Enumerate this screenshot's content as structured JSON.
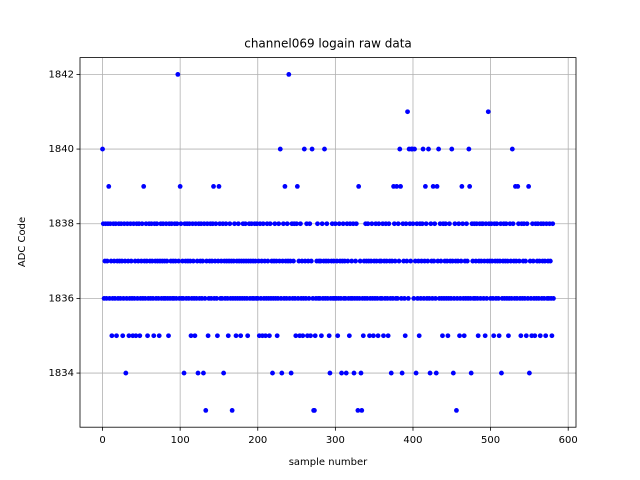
{
  "chart_data": {
    "type": "scatter",
    "title": "channel069 logain raw data",
    "xlabel": "sample number",
    "ylabel": "ADC Code",
    "color": "#0000ff",
    "grid": true,
    "xlim": [
      -29.05,
      610.05
    ],
    "ylim": [
      1832.55,
      1842.45
    ],
    "xticks": [
      0,
      100,
      200,
      300,
      400,
      500,
      600
    ],
    "yticks": [
      1834,
      1836,
      1838,
      1840,
      1842
    ],
    "x": [
      0,
      1,
      2,
      3,
      4,
      5,
      6,
      7,
      8,
      9,
      10,
      11,
      12,
      13,
      14,
      15,
      16,
      17,
      18,
      19,
      20,
      21,
      22,
      23,
      24,
      25,
      26,
      27,
      28,
      29,
      30,
      31,
      32,
      33,
      34,
      35,
      36,
      37,
      38,
      39,
      40,
      41,
      42,
      43,
      44,
      45,
      46,
      47,
      48,
      49,
      50,
      51,
      52,
      53,
      54,
      55,
      56,
      57,
      58,
      59,
      60,
      61,
      62,
      63,
      64,
      65,
      66,
      67,
      68,
      69,
      70,
      71,
      72,
      73,
      74,
      75,
      76,
      77,
      78,
      79,
      80,
      81,
      82,
      83,
      84,
      85,
      86,
      87,
      88,
      89,
      90,
      91,
      92,
      93,
      94,
      95,
      96,
      97,
      98,
      99,
      100,
      101,
      102,
      103,
      104,
      105,
      106,
      107,
      108,
      109,
      110,
      111,
      112,
      113,
      114,
      115,
      116,
      117,
      118,
      119,
      120,
      121,
      122,
      123,
      124,
      125,
      126,
      127,
      128,
      129,
      130,
      131,
      132,
      133,
      134,
      135,
      136,
      137,
      138,
      139,
      140,
      141,
      142,
      143,
      144,
      145,
      146,
      147,
      148,
      149,
      150,
      151,
      152,
      153,
      154,
      155,
      156,
      157,
      158,
      159,
      160,
      161,
      162,
      163,
      164,
      165,
      166,
      167,
      168,
      169,
      170,
      171,
      172,
      173,
      174,
      175,
      176,
      177,
      178,
      179,
      180,
      181,
      182,
      183,
      184,
      185,
      186,
      187,
      188,
      189,
      190,
      191,
      192,
      193,
      194,
      195,
      196,
      197,
      198,
      199,
      200,
      201,
      202,
      203,
      204,
      205,
      206,
      207,
      208,
      209,
      210,
      211,
      212,
      213,
      214,
      215,
      216,
      217,
      218,
      219,
      220,
      221,
      222,
      223,
      224,
      225,
      226,
      227,
      228,
      229,
      230,
      231,
      232,
      233,
      234,
      235,
      236,
      237,
      238,
      239,
      240,
      241,
      242,
      243,
      244,
      245,
      246,
      247,
      248,
      249,
      250,
      251,
      252,
      253,
      254,
      255,
      256,
      257,
      258,
      259,
      260,
      261,
      262,
      263,
      264,
      265,
      266,
      267,
      268,
      269,
      270,
      271,
      272,
      273,
      274,
      275,
      276,
      277,
      278,
      279,
      280,
      281,
      282,
      283,
      284,
      285,
      286,
      287,
      288,
      289,
      290,
      291,
      292,
      293,
      294,
      295,
      296,
      297,
      298,
      299,
      300,
      301,
      302,
      303,
      304,
      305,
      306,
      307,
      308,
      309,
      310,
      311,
      312,
      313,
      314,
      315,
      316,
      317,
      318,
      319,
      320,
      321,
      322,
      323,
      324,
      325,
      326,
      327,
      328,
      329,
      330,
      331,
      332,
      333,
      334,
      335,
      336,
      337,
      338,
      339,
      340,
      341,
      342,
      343,
      344,
      345,
      346,
      347,
      348,
      349,
      350,
      351,
      352,
      353,
      354,
      355,
      356,
      357,
      358,
      359,
      360,
      361,
      362,
      363,
      364,
      365,
      366,
      367,
      368,
      369,
      370,
      371,
      372,
      373,
      374,
      375,
      376,
      377,
      378,
      379,
      380,
      381,
      382,
      383,
      384,
      385,
      386,
      387,
      388,
      389,
      390,
      391,
      392,
      393,
      394,
      395,
      396,
      397,
      398,
      399,
      400,
      401,
      402,
      403,
      404,
      405,
      406,
      407,
      408,
      409,
      410,
      411,
      412,
      413,
      414,
      415,
      416,
      417,
      418,
      419,
      420,
      421,
      422,
      423,
      424,
      425,
      426,
      427,
      428,
      429,
      430,
      431,
      432,
      433,
      434,
      435,
      436,
      437,
      438,
      439,
      440,
      441,
      442,
      443,
      444,
      445,
      446,
      447,
      448,
      449,
      450,
      451,
      452,
      453,
      454,
      455,
      456,
      457,
      458,
      459,
      460,
      461,
      462,
      463,
      464,
      465,
      466,
      467,
      468,
      469,
      470,
      471,
      472,
      473,
      474,
      475,
      476,
      477,
      478,
      479,
      480,
      481,
      482,
      483,
      484,
      485,
      486,
      487,
      488,
      489,
      490,
      491,
      492,
      493,
      494,
      495,
      496,
      497,
      498,
      499,
      500,
      501,
      502,
      503,
      504,
      505,
      506,
      507,
      508,
      509,
      510,
      511,
      512,
      513,
      514,
      515,
      516,
      517,
      518,
      519,
      520,
      521,
      522,
      523,
      524,
      525,
      526,
      527,
      528,
      529,
      530,
      531,
      532,
      533,
      534,
      535,
      536,
      537,
      538,
      539,
      540,
      541,
      542,
      543,
      544,
      545,
      546,
      547,
      548,
      549,
      550,
      551,
      552,
      553,
      554,
      555,
      556,
      557,
      558,
      559,
      560,
      561,
      562,
      563,
      564,
      565,
      566,
      567,
      568,
      569,
      570,
      571,
      572,
      573,
      574,
      575,
      576,
      577,
      578,
      579,
      580,
      581
    ],
    "values": [
      1840,
      1838,
      1836,
      1837,
      1838,
      1836,
      1837,
      1838,
      1839,
      1836,
      1838,
      1837,
      1835,
      1836,
      1838,
      1837,
      1836,
      1838,
      1835,
      1837,
      1836,
      1838,
      1837,
      1836,
      1838,
      1837,
      1835,
      1836,
      1838,
      1837,
      1834,
      1836,
      1838,
      1837,
      1835,
      1836,
      1838,
      1837,
      1836,
      1835,
      1838,
      1836,
      1837,
      1835,
      1838,
      1836,
      1837,
      1838,
      1835,
      1836,
      1837,
      1838,
      1836,
      1839,
      1837,
      1836,
      1838,
      1837,
      1835,
      1836,
      1838,
      1837,
      1836,
      1838,
      1837,
      1836,
      1835,
      1838,
      1837,
      1836,
      1838,
      1837,
      1836,
      1835,
      1837,
      1838,
      1836,
      1837,
      1838,
      1836,
      1837,
      1836,
      1838,
      1837,
      1836,
      1835,
      1838,
      1836,
      1837,
      1838,
      1836,
      1837,
      1836,
      1838,
      1837,
      1836,
      1838,
      1842,
      1837,
      1836,
      1839,
      1838,
      1836,
      1837,
      1836,
      1834,
      1838,
      1837,
      1836,
      1838,
      1837,
      1836,
      1838,
      1837,
      1835,
      1836,
      1838,
      1837,
      1836,
      1835,
      1838,
      1836,
      1837,
      1834,
      1838,
      1836,
      1837,
      1838,
      1836,
      1837,
      1834,
      1838,
      1836,
      1833,
      1837,
      1838,
      1835,
      1836,
      1837,
      1838,
      1836,
      1837,
      1838,
      1839,
      1836,
      1837,
      1838,
      1836,
      1835,
      1837,
      1839,
      1838,
      1836,
      1837,
      1836,
      1838,
      1834,
      1837,
      1836,
      1838,
      1837,
      1836,
      1835,
      1837,
      1838,
      1836,
      1837,
      1833,
      1836,
      1837,
      1838,
      1836,
      1835,
      1837,
      1836,
      1838,
      1837,
      1836,
      1835,
      1837,
      1836,
      1838,
      1837,
      1836,
      1838,
      1837,
      1836,
      1835,
      1837,
      1838,
      1836,
      1837,
      1838,
      1836,
      1837,
      1836,
      1838,
      1837,
      1836,
      1838,
      1836,
      1837,
      1835,
      1838,
      1836,
      1837,
      1835,
      1838,
      1836,
      1837,
      1835,
      1836,
      1838,
      1837,
      1836,
      1835,
      1838,
      1836,
      1837,
      1834,
      1836,
      1837,
      1838,
      1836,
      1837,
      1835,
      1836,
      1838,
      1837,
      1840,
      1836,
      1834,
      1837,
      1838,
      1836,
      1839,
      1837,
      1836,
      1838,
      1837,
      1842,
      1836,
      1837,
      1834,
      1838,
      1836,
      1837,
      1838,
      1836,
      1835,
      1838,
      1839,
      1836,
      1837,
      1835,
      1838,
      1836,
      1837,
      1835,
      1836,
      1840,
      1837,
      1836,
      1838,
      1835,
      1837,
      1836,
      1838,
      1835,
      1837,
      1840,
      1836,
      1833,
      1833,
      1835,
      1836,
      1837,
      1838,
      1836,
      1837,
      1836,
      1837,
      1835,
      1838,
      1836,
      1837,
      1840,
      1836,
      1837,
      1838,
      1836,
      1837,
      1835,
      1834,
      1836,
      1837,
      1838,
      1836,
      1837,
      1836,
      1838,
      1836,
      1837,
      1835,
      1836,
      1838,
      1837,
      1836,
      1834,
      1837,
      1838,
      1836,
      1837,
      1836,
      1834,
      1838,
      1837,
      1836,
      1835,
      1838,
      1836,
      1837,
      1836,
      1838,
      1834,
      1836,
      1837,
      1838,
      1836,
      1833,
      1839,
      1836,
      1837,
      1834,
      1833,
      1836,
      1835,
      1837,
      1836,
      1838,
      1837,
      1836,
      1838,
      1837,
      1835,
      1836,
      1837,
      1838,
      1836,
      1835,
      1837,
      1836,
      1838,
      1837,
      1836,
      1835,
      1838,
      1837,
      1836,
      1837,
      1836,
      1838,
      1835,
      1837,
      1836,
      1838,
      1837,
      1836,
      1835,
      1838,
      1837,
      1836,
      1834,
      1837,
      1836,
      1839,
      1838,
      1837,
      1836,
      1839,
      1836,
      1838,
      1837,
      1840,
      1839,
      1836,
      1834,
      1838,
      1837,
      1836,
      1835,
      1838,
      1837,
      1841,
      1836,
      1840,
      1838,
      1837,
      1840,
      1840,
      1838,
      1836,
      1840,
      1837,
      1834,
      1838,
      1836,
      1837,
      1835,
      1838,
      1836,
      1837,
      1838,
      1840,
      1836,
      1837,
      1839,
      1838,
      1836,
      1837,
      1840,
      1836,
      1834,
      1838,
      1837,
      1836,
      1839,
      1837,
      1838,
      1836,
      1834,
      1839,
      1837,
      1840,
      1836,
      1838,
      1837,
      1836,
      1835,
      1838,
      1836,
      1837,
      1838,
      1836,
      1837,
      1835,
      1836,
      1838,
      1837,
      1836,
      1840,
      1837,
      1834,
      1836,
      1838,
      1837,
      1833,
      1836,
      1837,
      1838,
      1835,
      1836,
      1837,
      1839,
      1838,
      1836,
      1835,
      1837,
      1836,
      1838,
      1837,
      1836,
      1840,
      1839,
      1836,
      1834,
      1838,
      1837,
      1836,
      1838,
      1836,
      1837,
      1838,
      1836,
      1835,
      1837,
      1838,
      1836,
      1837,
      1838,
      1838,
      1836,
      1837,
      1835,
      1838,
      1836,
      1837,
      1841,
      1838,
      1837,
      1836,
      1838,
      1837,
      1836,
      1835,
      1838,
      1837,
      1836,
      1838,
      1837,
      1836,
      1835,
      1837,
      1838,
      1834,
      1836,
      1837,
      1838,
      1836,
      1837,
      1838,
      1836,
      1837,
      1835,
      1836,
      1838,
      1837,
      1836,
      1840,
      1838,
      1837,
      1836,
      1839,
      1837,
      1836,
      1839,
      1838,
      1837,
      1836,
      1835,
      1838,
      1836,
      1837,
      1838,
      1836,
      1837,
      1835,
      1838,
      1836,
      1839,
      1834,
      1837,
      1836,
      1835,
      1838,
      1837,
      1836,
      1835,
      1838,
      1836,
      1837,
      1838,
      1836,
      1837,
      1835,
      1838,
      1836,
      1837,
      1838,
      1836,
      1837,
      1835,
      1838,
      1836,
      1837,
      1836,
      1838,
      1837,
      1836,
      1835,
      1838,
      1836
    ]
  }
}
